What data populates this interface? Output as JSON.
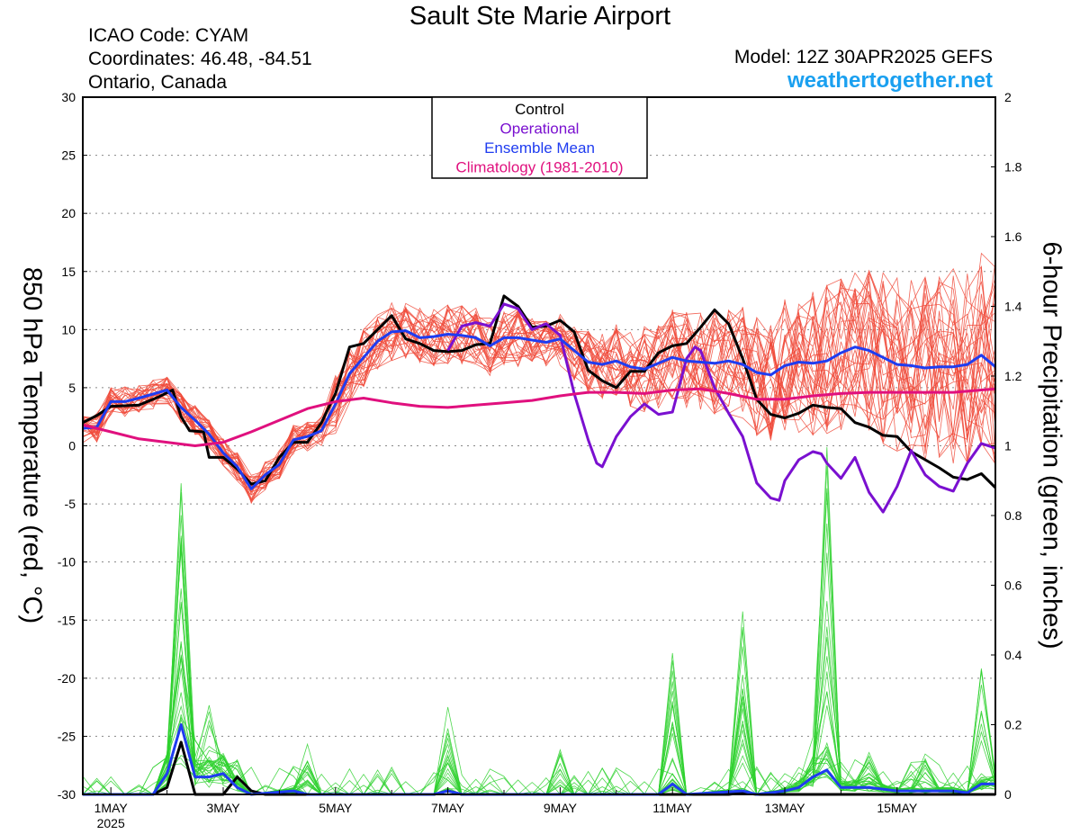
{
  "header": {
    "title": "Sault Ste Marie Airport",
    "icao": "ICAO Code: CYAM",
    "coords": "Coordinates: 46.48, -84.51",
    "region": "Ontario, Canada",
    "model": "Model: 12Z 30APR2025 GEFS",
    "site": "weathertogether.net"
  },
  "colors": {
    "control": "#000000",
    "operational": "#7a10d0",
    "mean": "#1f3cf0",
    "climatology": "#e0107e",
    "members_temp": "#f04a3a",
    "members_precip": "#2ed12e"
  },
  "chart_data": {
    "type": "line",
    "ylabel_left": "850 hPa Temperature (red, °C)",
    "ylabel_right": "6-hour Precipitation (green, inches)",
    "ylim_left": [
      -30,
      30
    ],
    "ylim_right": [
      0,
      2
    ],
    "yticks_left": [
      "30",
      "25",
      "20",
      "15",
      "10",
      "5",
      "0",
      "-5",
      "-10",
      "-15",
      "-20",
      "-25",
      "-30"
    ],
    "yticks_right": [
      "2",
      "1.8",
      "1.6",
      "1.4",
      "1.2",
      "1",
      "0.8",
      "0.6",
      "0.4",
      "0.2",
      "0"
    ],
    "x_unit": "days since 00Z 30 Apr 2025",
    "xlim": [
      0.5,
      16.75
    ],
    "xticks": [
      {
        "x": 1,
        "label": "1MAY",
        "sub": "2025"
      },
      {
        "x": 3,
        "label": "3MAY",
        "sub": ""
      },
      {
        "x": 5,
        "label": "5MAY",
        "sub": ""
      },
      {
        "x": 7,
        "label": "7MAY",
        "sub": ""
      },
      {
        "x": 9,
        "label": "9MAY",
        "sub": ""
      },
      {
        "x": 11,
        "label": "11MAY",
        "sub": ""
      },
      {
        "x": 13,
        "label": "13MAY",
        "sub": ""
      },
      {
        "x": 15,
        "label": "15MAY",
        "sub": ""
      }
    ],
    "legend": {
      "position": "top-center",
      "entries": [
        "Control",
        "Operational",
        "Ensemble Mean",
        "Climatology (1981-2010)"
      ]
    },
    "grid": "horizontal dotted",
    "series": [
      {
        "name": "Control",
        "axis": "left",
        "color": "#000000",
        "width": 3,
        "points": [
          [
            0.5,
            2
          ],
          [
            0.75,
            2.6
          ],
          [
            1,
            3.4
          ],
          [
            1.5,
            3.5
          ],
          [
            1.85,
            4.2
          ],
          [
            2.1,
            4.8
          ],
          [
            2.25,
            2.5
          ],
          [
            2.4,
            1.3
          ],
          [
            2.65,
            1.2
          ],
          [
            2.75,
            -1
          ],
          [
            3,
            -1
          ],
          [
            3.25,
            -2
          ],
          [
            3.5,
            -3.3
          ],
          [
            3.75,
            -3
          ],
          [
            4,
            -1
          ],
          [
            4.25,
            0.3
          ],
          [
            4.5,
            0.3
          ],
          [
            4.75,
            2
          ],
          [
            5,
            4.5
          ],
          [
            5.25,
            8.5
          ],
          [
            5.5,
            8.8
          ],
          [
            5.75,
            10
          ],
          [
            6,
            11.2
          ],
          [
            6.25,
            9.2
          ],
          [
            6.5,
            8.8
          ],
          [
            6.75,
            8.2
          ],
          [
            7,
            8.1
          ],
          [
            7.25,
            8.2
          ],
          [
            7.5,
            8.7
          ],
          [
            7.75,
            8.8
          ],
          [
            8,
            12.9
          ],
          [
            8.25,
            12
          ],
          [
            8.5,
            10.2
          ],
          [
            8.75,
            10.3
          ],
          [
            9,
            10.8
          ],
          [
            9.25,
            9.8
          ],
          [
            9.5,
            6.5
          ],
          [
            9.75,
            5.6
          ],
          [
            10,
            5
          ],
          [
            10.25,
            6.4
          ],
          [
            10.5,
            6.4
          ],
          [
            10.75,
            8
          ],
          [
            11,
            8.6
          ],
          [
            11.25,
            8.8
          ],
          [
            11.5,
            10.2
          ],
          [
            11.75,
            11.7
          ],
          [
            12,
            10.5
          ],
          [
            12.25,
            7.5
          ],
          [
            12.5,
            4
          ],
          [
            12.75,
            2.7
          ],
          [
            13,
            2.4
          ],
          [
            13.25,
            2.8
          ],
          [
            13.5,
            3.5
          ],
          [
            13.75,
            3.3
          ],
          [
            14,
            3.2
          ],
          [
            14.25,
            2
          ],
          [
            14.5,
            1.6
          ],
          [
            14.75,
            0.9
          ],
          [
            15,
            0.8
          ],
          [
            15.25,
            -0.5
          ],
          [
            15.5,
            -1.2
          ],
          [
            15.75,
            -1.9
          ],
          [
            16,
            -2.7
          ],
          [
            16.25,
            -2.9
          ],
          [
            16.5,
            -2.4
          ],
          [
            16.75,
            -3.6
          ]
        ]
      },
      {
        "name": "Operational",
        "axis": "left",
        "color": "#7a10d0",
        "width": 3,
        "points": [
          [
            7,
            8.2
          ],
          [
            7.25,
            10.3
          ],
          [
            7.5,
            10.6
          ],
          [
            7.75,
            10.3
          ],
          [
            8,
            12.2
          ],
          [
            8.25,
            11.8
          ],
          [
            8.5,
            10
          ],
          [
            8.75,
            10.5
          ],
          [
            9,
            9.5
          ],
          [
            9.25,
            4.5
          ],
          [
            9.5,
            0.5
          ],
          [
            9.65,
            -1.5
          ],
          [
            9.75,
            -1.8
          ],
          [
            10,
            0.8
          ],
          [
            10.25,
            2.5
          ],
          [
            10.5,
            3.6
          ],
          [
            10.75,
            2.7
          ],
          [
            11,
            2.9
          ],
          [
            11.25,
            7.5
          ],
          [
            11.4,
            8.5
          ],
          [
            11.5,
            8.2
          ],
          [
            11.75,
            5
          ],
          [
            12,
            2.8
          ],
          [
            12.25,
            0.8
          ],
          [
            12.5,
            -3.2
          ],
          [
            12.75,
            -4.5
          ],
          [
            12.9,
            -4.7
          ],
          [
            13,
            -3
          ],
          [
            13.25,
            -1.2
          ],
          [
            13.5,
            -0.5
          ],
          [
            13.65,
            -0.7
          ],
          [
            13.75,
            -1.5
          ],
          [
            14,
            -2.8
          ],
          [
            14.25,
            -1
          ],
          [
            14.5,
            -4
          ],
          [
            14.75,
            -5.7
          ],
          [
            15,
            -3.5
          ],
          [
            15.25,
            -0.4
          ],
          [
            15.5,
            -2.5
          ],
          [
            15.75,
            -3.5
          ],
          [
            16,
            -3.9
          ],
          [
            16.25,
            -1.5
          ],
          [
            16.5,
            0.2
          ],
          [
            16.75,
            -0.2
          ]
        ]
      },
      {
        "name": "Ensemble Mean",
        "axis": "left",
        "color": "#1f3cf0",
        "width": 3,
        "points": [
          [
            0.5,
            1.5
          ],
          [
            0.75,
            1.6
          ],
          [
            1,
            3.8
          ],
          [
            1.25,
            3.8
          ],
          [
            1.5,
            4.1
          ],
          [
            2,
            4.8
          ],
          [
            2.25,
            3.3
          ],
          [
            2.5,
            2.2
          ],
          [
            2.75,
            1
          ],
          [
            3,
            -0.6
          ],
          [
            3.25,
            -1.8
          ],
          [
            3.5,
            -3.7
          ],
          [
            3.75,
            -2.5
          ],
          [
            4,
            -1.6
          ],
          [
            4.25,
            0.5
          ],
          [
            4.5,
            0.8
          ],
          [
            4.75,
            1.3
          ],
          [
            5,
            3.6
          ],
          [
            5.25,
            6.2
          ],
          [
            5.5,
            7.6
          ],
          [
            5.75,
            9
          ],
          [
            6,
            9.8
          ],
          [
            6.25,
            9.9
          ],
          [
            6.5,
            9.3
          ],
          [
            6.75,
            9.4
          ],
          [
            7,
            9.6
          ],
          [
            7.25,
            9.5
          ],
          [
            7.5,
            9.3
          ],
          [
            7.75,
            8.6
          ],
          [
            8,
            9.3
          ],
          [
            8.25,
            9.3
          ],
          [
            8.5,
            9.1
          ],
          [
            8.75,
            8.9
          ],
          [
            9,
            9.2
          ],
          [
            9.25,
            8.2
          ],
          [
            9.5,
            7.2
          ],
          [
            9.75,
            7
          ],
          [
            10,
            7.3
          ],
          [
            10.25,
            6.8
          ],
          [
            10.5,
            6.6
          ],
          [
            10.75,
            7.1
          ],
          [
            11,
            7.6
          ],
          [
            11.25,
            7.3
          ],
          [
            11.5,
            7.2
          ],
          [
            11.75,
            7.1
          ],
          [
            12,
            7.3
          ],
          [
            12.25,
            7
          ],
          [
            12.5,
            6.3
          ],
          [
            12.75,
            6.1
          ],
          [
            13,
            6.9
          ],
          [
            13.25,
            7.2
          ],
          [
            13.5,
            7.1
          ],
          [
            13.75,
            7.3
          ],
          [
            14,
            8
          ],
          [
            14.25,
            8.5
          ],
          [
            14.5,
            8.2
          ],
          [
            14.75,
            7.6
          ],
          [
            15,
            7
          ],
          [
            15.25,
            6.9
          ],
          [
            15.5,
            6.7
          ],
          [
            15.75,
            6.8
          ],
          [
            16,
            6.8
          ],
          [
            16.25,
            7
          ],
          [
            16.5,
            7.8
          ],
          [
            16.75,
            6.8
          ]
        ]
      },
      {
        "name": "Climatology (1981-2010)",
        "axis": "left",
        "color": "#e0107e",
        "width": 3,
        "points": [
          [
            0.5,
            1.8
          ],
          [
            1,
            1.2
          ],
          [
            1.5,
            0.6
          ],
          [
            2,
            0.3
          ],
          [
            2.5,
            0
          ],
          [
            3,
            0.3
          ],
          [
            3.5,
            1.2
          ],
          [
            4,
            2.2
          ],
          [
            4.5,
            3.2
          ],
          [
            5,
            3.8
          ],
          [
            5.5,
            4.1
          ],
          [
            6,
            3.7
          ],
          [
            6.5,
            3.4
          ],
          [
            7,
            3.3
          ],
          [
            7.5,
            3.5
          ],
          [
            8,
            3.7
          ],
          [
            8.5,
            3.9
          ],
          [
            9,
            4.3
          ],
          [
            9.5,
            4.6
          ],
          [
            10,
            4.6
          ],
          [
            10.5,
            4.5
          ],
          [
            11,
            4.8
          ],
          [
            11.5,
            4.9
          ],
          [
            12,
            4.5
          ],
          [
            12.5,
            4
          ],
          [
            13,
            4
          ],
          [
            13.5,
            4.3
          ],
          [
            14,
            4.5
          ],
          [
            14.5,
            4.6
          ],
          [
            15,
            4.6
          ],
          [
            15.5,
            4.6
          ],
          [
            16,
            4.6
          ],
          [
            16.5,
            4.8
          ],
          [
            16.75,
            4.9
          ]
        ]
      },
      {
        "name": "Control 6-hour precipitation",
        "axis": "right",
        "color": "#000000",
        "width": 3,
        "points": [
          [
            0.5,
            0
          ],
          [
            1.75,
            0
          ],
          [
            2,
            0.02
          ],
          [
            2.25,
            0.15
          ],
          [
            2.5,
            0
          ],
          [
            3,
            0
          ],
          [
            3.25,
            0.05
          ],
          [
            3.5,
            0.01
          ],
          [
            3.75,
            0
          ],
          [
            6.75,
            0
          ],
          [
            7,
            0.01
          ],
          [
            7.25,
            0
          ],
          [
            7.5,
            0
          ],
          [
            12,
            0
          ],
          [
            12.25,
            0.005
          ],
          [
            12.5,
            0
          ],
          [
            16.75,
            0
          ]
        ]
      },
      {
        "name": "Ensemble Mean 6-hour precipitation",
        "axis": "right",
        "color": "#1f3cf0",
        "width": 3,
        "points": [
          [
            0.5,
            0
          ],
          [
            1.75,
            0
          ],
          [
            2,
            0.06
          ],
          [
            2.25,
            0.2
          ],
          [
            2.5,
            0.05
          ],
          [
            2.75,
            0.05
          ],
          [
            3,
            0.06
          ],
          [
            3.25,
            0.02
          ],
          [
            3.5,
            0
          ],
          [
            4.25,
            0.01
          ],
          [
            4.5,
            0
          ],
          [
            6.75,
            0
          ],
          [
            7,
            0.01
          ],
          [
            7.25,
            0
          ],
          [
            10.75,
            0
          ],
          [
            11,
            0.03
          ],
          [
            11.25,
            0
          ],
          [
            12.25,
            0.01
          ],
          [
            12.5,
            0
          ],
          [
            13,
            0.01
          ],
          [
            13.25,
            0.02
          ],
          [
            13.5,
            0.05
          ],
          [
            13.75,
            0.07
          ],
          [
            14,
            0.02
          ],
          [
            14.5,
            0.02
          ],
          [
            15,
            0.01
          ],
          [
            15.5,
            0.01
          ],
          [
            16,
            0.01
          ],
          [
            16.25,
            0.005
          ],
          [
            16.5,
            0.03
          ],
          [
            16.75,
            0.03
          ]
        ]
      }
    ]
  }
}
